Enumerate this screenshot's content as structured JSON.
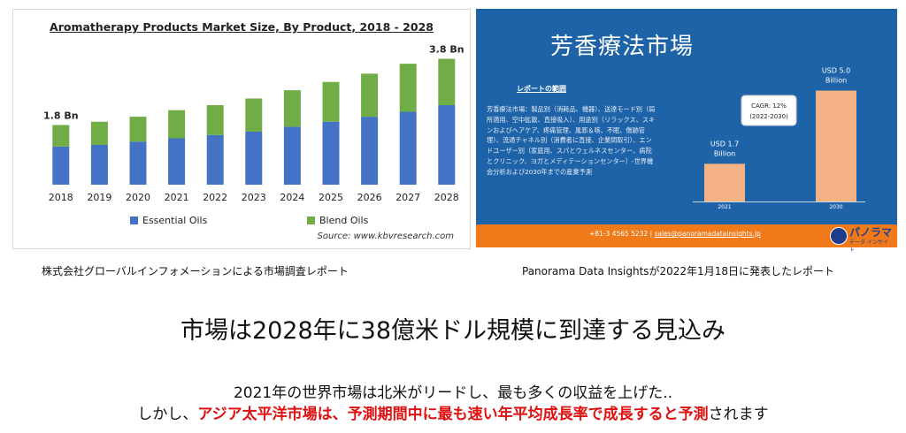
{
  "left_caption": "株式会社グローバルインフォメーションによる市場調査レポート",
  "right_caption": "Panorama Data Insightsが2022年1月18日に発表したレポート",
  "headline": "市場は2028年に38億米ドル規模に到達する見込み",
  "summary_line1": "2021年の世界市場は北米がリードし、最も多くの収益を上げた..",
  "summary_line2": {
    "prefix": "しかし、",
    "highlight": "アジア太平洋市場は、予測期間中に最も速い年平均成長率で成長すると予測",
    "suffix": "されます"
  },
  "colors": {
    "essential": "#4472c4",
    "blend": "#70ad47",
    "right_bg": "#1e63a8",
    "right_bar": "#f4b183",
    "footer": "#f07a1a",
    "highlight": "#e01010"
  },
  "chart_data": [
    {
      "type": "bar",
      "stacked": true,
      "title": "Aromatherapy Products Market Size, By Product, 2018 - 2028",
      "categories": [
        "2018",
        "2019",
        "2020",
        "2021",
        "2022",
        "2023",
        "2024",
        "2025",
        "2026",
        "2027",
        "2028"
      ],
      "series": [
        {
          "name": "Essential Oils",
          "values": [
            1.15,
            1.2,
            1.3,
            1.4,
            1.5,
            1.6,
            1.75,
            1.9,
            2.05,
            2.2,
            2.4
          ]
        },
        {
          "name": "Blend Oils",
          "values": [
            0.65,
            0.7,
            0.75,
            0.85,
            0.9,
            1.0,
            1.1,
            1.2,
            1.3,
            1.45,
            1.4
          ]
        }
      ],
      "annotations": [
        {
          "category": "2018",
          "text": "1.8 Bn"
        },
        {
          "category": "2028",
          "text": "3.8 Bn"
        }
      ],
      "legend": "bottom",
      "source": "Source: www.kbvresearch.com",
      "ylim": [
        0,
        4
      ]
    },
    {
      "type": "bar",
      "title": "芳香療法市場",
      "categories": [
        "2021",
        "2030"
      ],
      "values": [
        1.7,
        5.0
      ],
      "value_labels": [
        "USD 1.7 Billion",
        "USD 5.0 Billion"
      ],
      "annotation": {
        "line1": "CAGR: 12%",
        "line2": "(2022-2030)"
      },
      "ylim": [
        0,
        5.5
      ],
      "report_scope": {
        "heading": "レポートの範囲",
        "body": "芳香療法市場：製品別（消耗品、機器）、送達モード別（局所適用、空中拡散、直接吸入）、用途別（リラックス、スキンおよびヘアケア、疼痛管理、風邪＆咳、不眠、傷跡管理）、流通チャネル別（消費者に直接、企業間取引）、エンドユーザー別（家庭用、スパとウェルネスセンター、病院とクリニック、ヨガとメディテーションセンター）-世界機会分析および2030年までの産業予測"
      },
      "footer": {
        "phone": "+81-3 4565 5232",
        "separator": "|",
        "email": "sales@panoramadatainsights.jp"
      },
      "logo": {
        "main": "パノラマ",
        "sub": "データ インサイト"
      }
    }
  ]
}
